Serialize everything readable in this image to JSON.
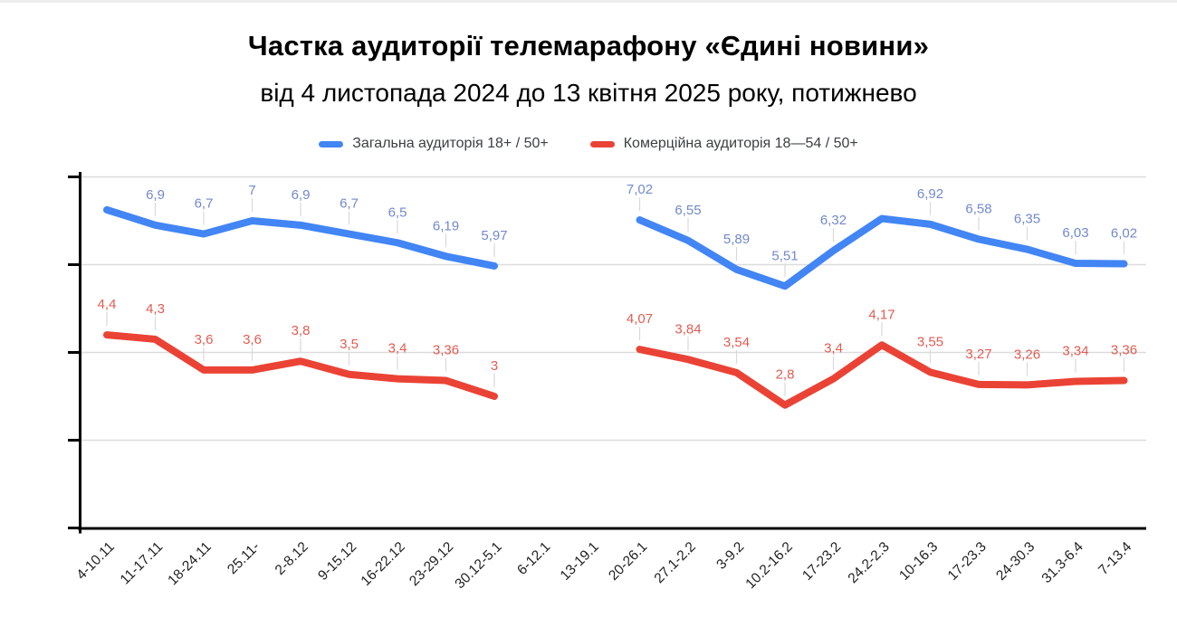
{
  "chart_data": {
    "type": "line",
    "title": "Частка аудиторії телемарафону «Єдині новини»",
    "subtitle": "від 4 листопада 2024 до 13 квітня 2025 року, потижнево",
    "legend_position": "top",
    "grid": true,
    "ylim": [
      0,
      8
    ],
    "y_gridline_values": [
      8,
      6,
      4,
      2,
      0
    ],
    "y_axis_labels_visible": false,
    "decimal_separator": ",",
    "categories": [
      "4-10.11",
      "11-17.11",
      "18-24.11",
      "25.11-",
      "2-8.12",
      "9-15.12",
      "16-22.12",
      "23-29.12",
      "30.12-5.1",
      "6-12.1",
      "13-19.1",
      "20-26.1",
      "27.1-2.2",
      "3-9.2",
      "10.2-16.2",
      "17-23.2",
      "24.2-2.3",
      "10-16.3",
      "17-23.3",
      "24-30.3",
      "31.3-6.4",
      "7-13.4"
    ],
    "series": [
      {
        "name": "Загальна аудиторія 18+ / 50+",
        "color": "#4285f4",
        "label_color": "#7289cc",
        "values": [
          7.25,
          6.9,
          6.7,
          7,
          6.9,
          6.7,
          6.5,
          6.19,
          5.97,
          null,
          null,
          7.02,
          6.55,
          5.89,
          5.51,
          6.32,
          7.05,
          6.92,
          6.58,
          6.35,
          6.03,
          6.02
        ],
        "labels": [
          "",
          "6,9",
          "6,7",
          "7",
          "6,9",
          "6,7",
          "6,5",
          "6,19",
          "5,97",
          "",
          "",
          "7,02",
          "6,55",
          "5,89",
          "5,51",
          "6,32",
          "",
          "6,92",
          "6,58",
          "6,35",
          "6,03",
          "6,02"
        ]
      },
      {
        "name": "Комерційна аудиторія 18—54 / 50+",
        "color": "#ea4335",
        "label_color": "#e05d52",
        "values": [
          4.4,
          4.3,
          3.6,
          3.6,
          3.8,
          3.5,
          3.4,
          3.36,
          3,
          null,
          null,
          4.07,
          3.84,
          3.54,
          2.8,
          3.4,
          4.17,
          3.55,
          3.27,
          3.26,
          3.34,
          3.36
        ],
        "labels": [
          "4,4",
          "4,3",
          "3,6",
          "3,6",
          "3,8",
          "3,5",
          "3,4",
          "3,36",
          "3",
          "",
          "",
          "4,07",
          "3,84",
          "3,54",
          "2,8",
          "3,4",
          "4,17",
          "3,55",
          "3,27",
          "3,26",
          "3,34",
          "3,36"
        ]
      }
    ],
    "colors": {
      "axis": "#000000",
      "gridline": "#dcdcdc",
      "leader_line": "#d9d9d9",
      "x_tick_label": "#1f1f1f",
      "legend_text": "#3c4043"
    }
  }
}
